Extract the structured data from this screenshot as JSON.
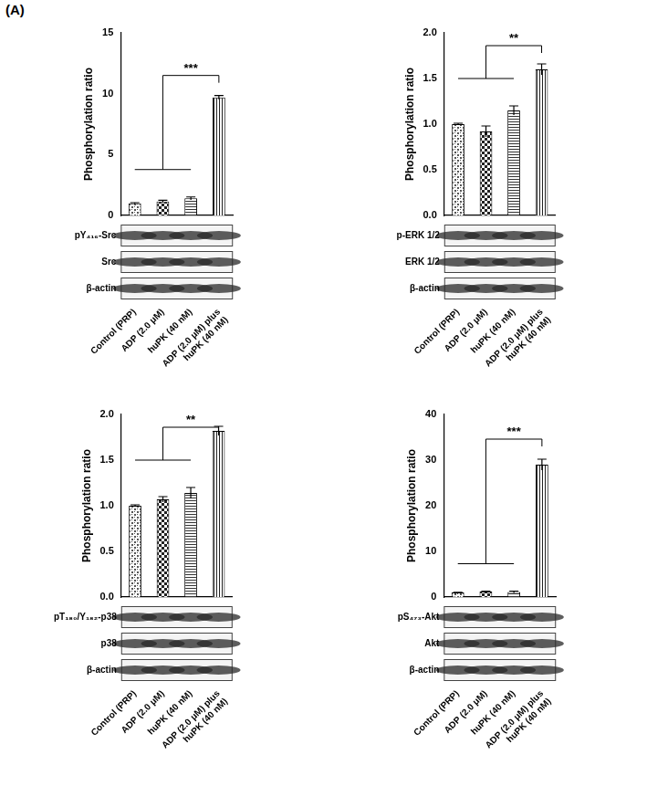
{
  "panel_label": "(A)",
  "chart_data": [
    {
      "type": "bar",
      "y_label": "Phosphorylation ratio",
      "categories": [
        "Control (PRP)",
        "ADP (2.0 μM)",
        "huPK (40 nM)",
        [
          "ADP (2.0 μM) plus",
          "huPK (40 nM)"
        ]
      ],
      "values": [
        1.0,
        1.15,
        1.4,
        9.7
      ],
      "errors": [
        0.05,
        0.1,
        0.12,
        0.15
      ],
      "colors": [
        "#555555",
        "#222222",
        "#333333",
        "#222222"
      ],
      "ylim": [
        0,
        15
      ],
      "yticks": [
        0,
        5,
        10,
        15
      ],
      "grid": false,
      "annotation": "***",
      "blot_labels": [
        "pY₄₁₆-Src",
        "Src",
        "β-actin"
      ]
    },
    {
      "type": "bar",
      "y_label": "Phosphorylation ratio",
      "categories": [
        "Control (PRP)",
        "ADP (2.0 μM)",
        "huPK (40 nM)",
        [
          "ADP (2.0 μM) plus",
          "huPK (40 nM)"
        ]
      ],
      "values": [
        1.0,
        0.92,
        1.15,
        1.6
      ],
      "errors": [
        0.01,
        0.06,
        0.05,
        0.06
      ],
      "colors": [
        "#555555",
        "#222222",
        "#333333",
        "#222222"
      ],
      "ylim": [
        0,
        2
      ],
      "yticks": [
        {
          "value": 0,
          "label": "0.0"
        },
        {
          "value": 0.5,
          "label": "0.5"
        },
        {
          "value": 1,
          "label": "1.0"
        },
        {
          "value": 1.5,
          "label": "1.5"
        },
        {
          "value": 2,
          "label": "2.0"
        }
      ],
      "grid": false,
      "annotation": "**",
      "blot_labels": [
        "p-ERK 1/2",
        "ERK 1/2",
        "β-actin"
      ]
    },
    {
      "type": "bar",
      "y_label": "Phosphorylation ratio",
      "categories": [
        "Control (PRP)",
        "ADP (2.0 μM)",
        "huPK (40 nM)",
        [
          "ADP (2.0 μM) plus",
          "huPK (40 nM)"
        ]
      ],
      "values": [
        1.0,
        1.07,
        1.14,
        1.82
      ],
      "errors": [
        0.01,
        0.03,
        0.06,
        0.05
      ],
      "colors": [
        "#555555",
        "#222222",
        "#333333",
        "#222222"
      ],
      "ylim": [
        0,
        2
      ],
      "yticks": [
        {
          "value": 0,
          "label": "0.0"
        },
        {
          "value": 0.5,
          "label": "0.5"
        },
        {
          "value": 1,
          "label": "1.0"
        },
        {
          "value": 1.5,
          "label": "1.5"
        },
        {
          "value": 2,
          "label": "2.0"
        }
      ],
      "grid": false,
      "annotation": "**",
      "blot_labels": [
        "pT₁₈₀/Y₁₈₂-p38",
        "p38",
        "β-actin"
      ]
    },
    {
      "type": "bar",
      "y_label": "Phosphorylation ratio",
      "categories": [
        "Control (PRP)",
        "ADP (2.0 μM)",
        "huPK (40 nM)",
        [
          "ADP (2.0 μM) plus",
          "huPK (40 nM)"
        ]
      ],
      "values": [
        1.0,
        1.2,
        1.1,
        29
      ],
      "errors": [
        0.05,
        0.1,
        0.2,
        1.2
      ],
      "colors": [
        "#555555",
        "#222222",
        "#333333",
        "#222222"
      ],
      "ylim": [
        0,
        40
      ],
      "yticks": [
        0,
        10,
        20,
        30,
        40
      ],
      "grid": false,
      "annotation": "***",
      "blot_labels": [
        "pS₄₇₃-Akt",
        "Akt",
        "β-actin"
      ]
    }
  ]
}
